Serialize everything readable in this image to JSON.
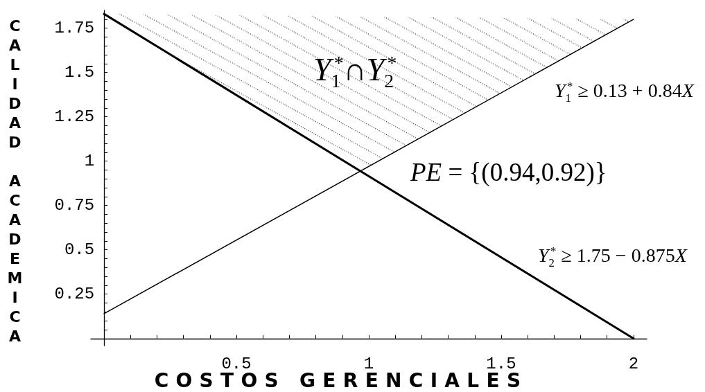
{
  "chart_data": {
    "type": "line",
    "xlabel": "COSTOS GERENCIALES",
    "ylabel": "CALIDAD ACADEMICA",
    "annotations": [
      "Y$_{1}$$^{*}$∩Y$_{2}$$^{*}$",
      "Y$_{1}$$^{*}$ ≥ 0.13 + 0.84X",
      "PE = {(0.94,0.92)}",
      "Y$_{2}$$^{*}$ ≥ 1.75 − 0.875X"
    ],
    "series": [
      {
        "color": "#000000",
        "x": [
          0,
          2
        ],
        "values": [
          0.14,
          1.8
        ]
      },
      {
        "color": "#000000",
        "x": [
          0,
          2
        ],
        "values": [
          1.83,
          0
        ]
      },
      {
        "type": "area",
        "color": "#000000",
        "x": [
          0,
          0.97,
          2
        ],
        "values": [
          1.83,
          0.94,
          1.8
        ]
      }
    ],
    "xlim": [
      -0.05,
      2.05
    ],
    "ylim": [
      -0.04,
      1.85
    ],
    "xticks": [
      {
        "value": 0.1,
        "label": null
      },
      {
        "value": 0.2,
        "label": null
      },
      {
        "value": 0.3,
        "label": null
      },
      {
        "value": 0.4,
        "label": null
      },
      0.5,
      {
        "value": 0.6,
        "label": null
      },
      {
        "value": 0.7,
        "label": null
      },
      {
        "value": 0.8,
        "label": null
      },
      {
        "value": 0.9,
        "label": null
      },
      1,
      {
        "value": 1.1,
        "label": null
      },
      {
        "value": 1.2,
        "label": null
      },
      {
        "value": 1.3,
        "label": null
      },
      {
        "value": 1.4,
        "label": null
      },
      1.5,
      {
        "value": 1.6,
        "label": null
      },
      {
        "value": 1.7,
        "label": null
      },
      {
        "value": 1.8,
        "label": null
      },
      {
        "value": 1.9,
        "label": null
      },
      2
    ],
    "yticks": [
      {
        "value": 0.05,
        "label": null
      },
      {
        "value": 0.1,
        "label": null
      },
      {
        "value": 0.15,
        "label": null
      },
      {
        "value": 0.2,
        "label": null
      },
      0.25,
      {
        "value": 0.3,
        "label": null
      },
      {
        "value": 0.35,
        "label": null
      },
      {
        "value": 0.4,
        "label": null
      },
      {
        "value": 0.45,
        "label": null
      },
      0.5,
      {
        "value": 0.55,
        "label": null
      },
      {
        "value": 0.6,
        "label": null
      },
      {
        "value": 0.65,
        "label": null
      },
      {
        "value": 0.7,
        "label": null
      },
      0.75,
      {
        "value": 0.8,
        "label": null
      },
      {
        "value": 0.85,
        "label": null
      },
      {
        "value": 0.9,
        "label": null
      },
      {
        "value": 0.95,
        "label": null
      },
      1,
      {
        "value": 1.05,
        "label": null
      },
      {
        "value": 1.1,
        "label": null
      },
      {
        "value": 1.15,
        "label": null
      },
      {
        "value": 1.2,
        "label": null
      },
      1.25,
      {
        "value": 1.3,
        "label": null
      },
      {
        "value": 1.35,
        "label": null
      },
      {
        "value": 1.4,
        "label": null
      },
      {
        "value": 1.45,
        "label": null
      },
      1.5,
      {
        "value": 1.55,
        "label": null
      },
      {
        "value": 1.6,
        "label": null
      },
      {
        "value": 1.65,
        "label": null
      },
      {
        "value": 1.7,
        "label": null
      },
      1.75,
      {
        "value": 1.8,
        "label": null
      }
    ],
    "marker": "none"
  }
}
